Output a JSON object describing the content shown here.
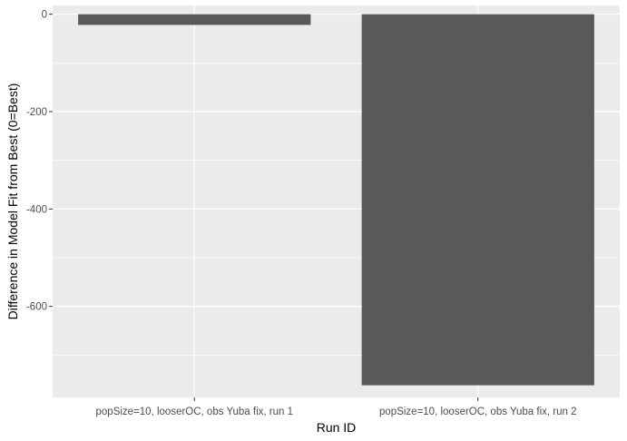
{
  "chart_data": {
    "type": "bar",
    "title": "",
    "xlabel": "Run ID",
    "ylabel": "Difference in Model Fit from Best (0=Best)",
    "categories": [
      "popSize=10, looserOC, obs Yuba fix, run 1",
      "popSize=10, looserOC, obs Yuba fix, run 2"
    ],
    "values": [
      -22,
      -762
    ],
    "ylim": [
      -787,
      18
    ],
    "yticks": [
      0,
      -200,
      -400,
      -600
    ],
    "ytick_labels": [
      "0",
      "-200",
      "-400",
      "-600"
    ],
    "grid": true,
    "colors": {
      "panel_background": "#EBEBEB",
      "grid_major": "#FFFFFF",
      "bar_fill": "#595959",
      "tick_label": "#4D4D4D",
      "axis_title": "#000000"
    }
  }
}
